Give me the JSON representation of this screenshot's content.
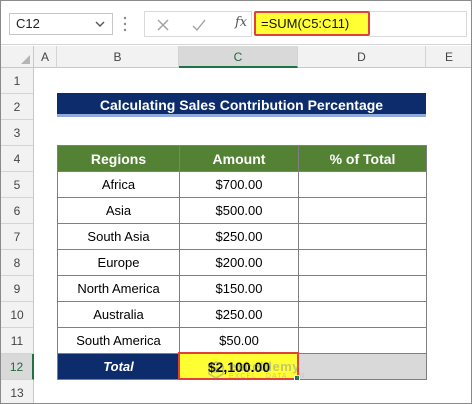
{
  "formula_bar": {
    "name_box": "C12",
    "formula": "=SUM(C5:C11)",
    "fx_label": "fx"
  },
  "columns": [
    "A",
    "B",
    "C",
    "D",
    "E"
  ],
  "rows": [
    "1",
    "2",
    "3",
    "4",
    "5",
    "6",
    "7",
    "8",
    "9",
    "10",
    "11",
    "12",
    "13"
  ],
  "title": "Calculating Sales Contribution Percentage",
  "table": {
    "headers": [
      "Regions",
      "Amount",
      "% of Total"
    ],
    "rows": [
      {
        "region": "Africa",
        "amount": "$700.00",
        "pct": ""
      },
      {
        "region": "Asia",
        "amount": "$500.00",
        "pct": ""
      },
      {
        "region": "South Asia",
        "amount": "$250.00",
        "pct": ""
      },
      {
        "region": "Europe",
        "amount": "$200.00",
        "pct": ""
      },
      {
        "region": "North America",
        "amount": "$150.00",
        "pct": ""
      },
      {
        "region": "Australia",
        "amount": "$250.00",
        "pct": ""
      },
      {
        "region": "South America",
        "amount": "$50.00",
        "pct": ""
      }
    ],
    "total": {
      "label": "Total",
      "amount": "$2,100.00",
      "pct": ""
    }
  },
  "watermark": {
    "name": "exceldemy",
    "tagline": "EXCEL · DATA · BI"
  },
  "colors": {
    "title_bg": "#0c2c6b",
    "header_bg": "#548235",
    "highlight": "#ffff33",
    "selection_border": "#e0413c",
    "excel_green": "#217346"
  }
}
